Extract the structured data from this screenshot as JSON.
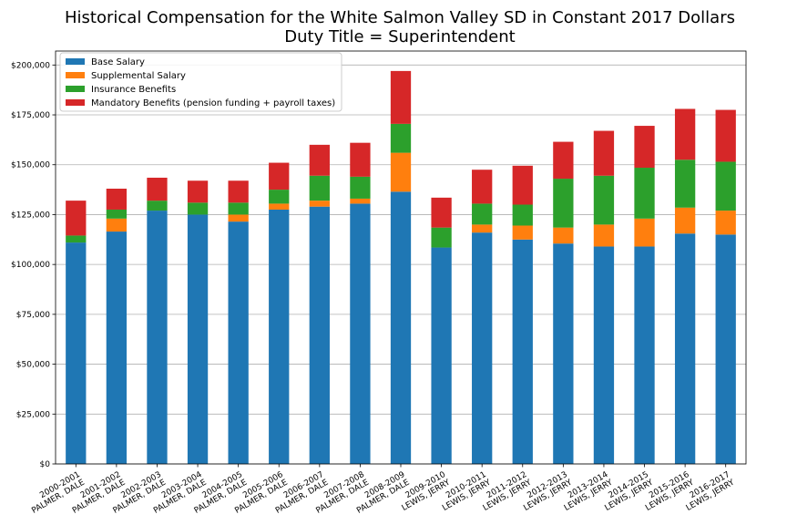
{
  "chart_data": {
    "type": "bar",
    "stacked": true,
    "title": "Historical Compensation for the White Salmon Valley SD in Constant 2017 Dollars",
    "subtitle": "Duty Title = Superintendent",
    "xlabel": "",
    "ylabel": "",
    "ylim": [
      0,
      207000
    ],
    "yticks": [
      0,
      25000,
      50000,
      75000,
      100000,
      125000,
      150000,
      175000,
      200000
    ],
    "ytick_labels": [
      "$0",
      "$25,000",
      "$50,000",
      "$75,000",
      "$100,000",
      "$125,000",
      "$150,000",
      "$175,000",
      "$200,000"
    ],
    "grid": "horizontal",
    "legend_position": "top-left",
    "categories": [
      {
        "year": "2000-2001",
        "name": "PALMER, DALE"
      },
      {
        "year": "2001-2002",
        "name": "PALMER, DALE"
      },
      {
        "year": "2002-2003",
        "name": "PALMER, DALE"
      },
      {
        "year": "2003-2004",
        "name": "PALMER, DALE"
      },
      {
        "year": "2004-2005",
        "name": "PALMER, DALE"
      },
      {
        "year": "2005-2006",
        "name": "PALMER, DALE"
      },
      {
        "year": "2006-2007",
        "name": "PALMER, DALE"
      },
      {
        "year": "2007-2008",
        "name": "PALMER, DALE"
      },
      {
        "year": "2008-2009",
        "name": "PALMER, DALE"
      },
      {
        "year": "2009-2010",
        "name": "LEWIS, JERRY"
      },
      {
        "year": "2010-2011",
        "name": "LEWIS, JERRY"
      },
      {
        "year": "2011-2012",
        "name": "LEWIS, JERRY"
      },
      {
        "year": "2012-2013",
        "name": "LEWIS, JERRY"
      },
      {
        "year": "2013-2014",
        "name": "LEWIS, JERRY"
      },
      {
        "year": "2014-2015",
        "name": "LEWIS, JERRY"
      },
      {
        "year": "2015-2016",
        "name": "LEWIS, JERRY"
      },
      {
        "year": "2016-2017",
        "name": "LEWIS, JERRY"
      }
    ],
    "series": [
      {
        "name": "Base Salary",
        "color": "#1f77b4",
        "values": [
          111000,
          116500,
          127000,
          125000,
          121500,
          127500,
          129000,
          130500,
          136500,
          108500,
          116000,
          112500,
          110500,
          109000,
          109000,
          115500,
          115000
        ]
      },
      {
        "name": "Supplemental Salary",
        "color": "#ff7f0e",
        "values": [
          0,
          6500,
          0,
          0,
          3500,
          3000,
          3000,
          2500,
          19500,
          0,
          4000,
          7000,
          8000,
          11000,
          14000,
          13000,
          12000
        ]
      },
      {
        "name": "Insurance Benefits",
        "color": "#2ca02c",
        "values": [
          3500,
          4500,
          5000,
          6000,
          6000,
          7000,
          12500,
          11000,
          14500,
          10000,
          10500,
          10500,
          24500,
          24500,
          25500,
          24000,
          24500
        ]
      },
      {
        "name": "Mandatory Benefits (pension funding + payroll taxes)",
        "color": "#d62728",
        "values": [
          17500,
          10500,
          11500,
          11000,
          11000,
          13500,
          15500,
          17000,
          26500,
          15000,
          17000,
          19500,
          18500,
          22500,
          21000,
          25500,
          26000
        ]
      }
    ]
  }
}
